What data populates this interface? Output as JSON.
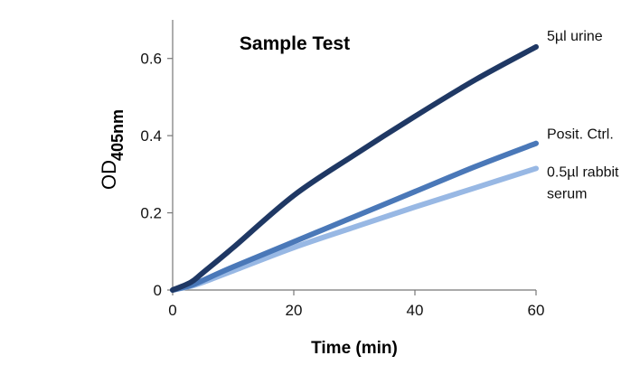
{
  "chart_data": {
    "type": "line",
    "title": "Sample Test",
    "xlabel": "Time (min)",
    "ylabel": "OD",
    "ylabel_subscript": "405nm",
    "xlim": [
      0,
      60
    ],
    "ylim": [
      0,
      0.7
    ],
    "xticks": [
      0,
      20,
      40,
      60
    ],
    "xtick_labels": [
      "0",
      "20",
      "40",
      "60"
    ],
    "yticks": [
      0,
      0.2,
      0.4,
      0.6
    ],
    "ytick_labels": [
      "0",
      "0.2",
      "0.4",
      "0.6"
    ],
    "grid": false,
    "legend": "direct labels at right end of lines",
    "series": [
      {
        "name": "5µl urine",
        "label_lines": [
          "5µl urine"
        ],
        "color": "#1f3864",
        "x": [
          0,
          3,
          5,
          10,
          20,
          30,
          40,
          50,
          60
        ],
        "y": [
          0,
          0.02,
          0.045,
          0.11,
          0.245,
          0.35,
          0.45,
          0.545,
          0.63
        ]
      },
      {
        "name": "Posit. Ctrl.",
        "label_lines": [
          "Posit. Ctrl."
        ],
        "color": "#4a78b8",
        "x": [
          0,
          3,
          5,
          10,
          20,
          30,
          40,
          50,
          60
        ],
        "y": [
          0,
          0.012,
          0.025,
          0.06,
          0.125,
          0.19,
          0.255,
          0.32,
          0.38
        ]
      },
      {
        "name": "0.5µl rabbit serum",
        "label_lines": [
          "0.5µl rabbit",
          "serum"
        ],
        "color": "#98b8e4",
        "x": [
          0,
          3,
          5,
          10,
          20,
          30,
          40,
          50,
          60
        ],
        "y": [
          0,
          0.01,
          0.02,
          0.05,
          0.11,
          0.163,
          0.215,
          0.265,
          0.315
        ]
      }
    ]
  }
}
